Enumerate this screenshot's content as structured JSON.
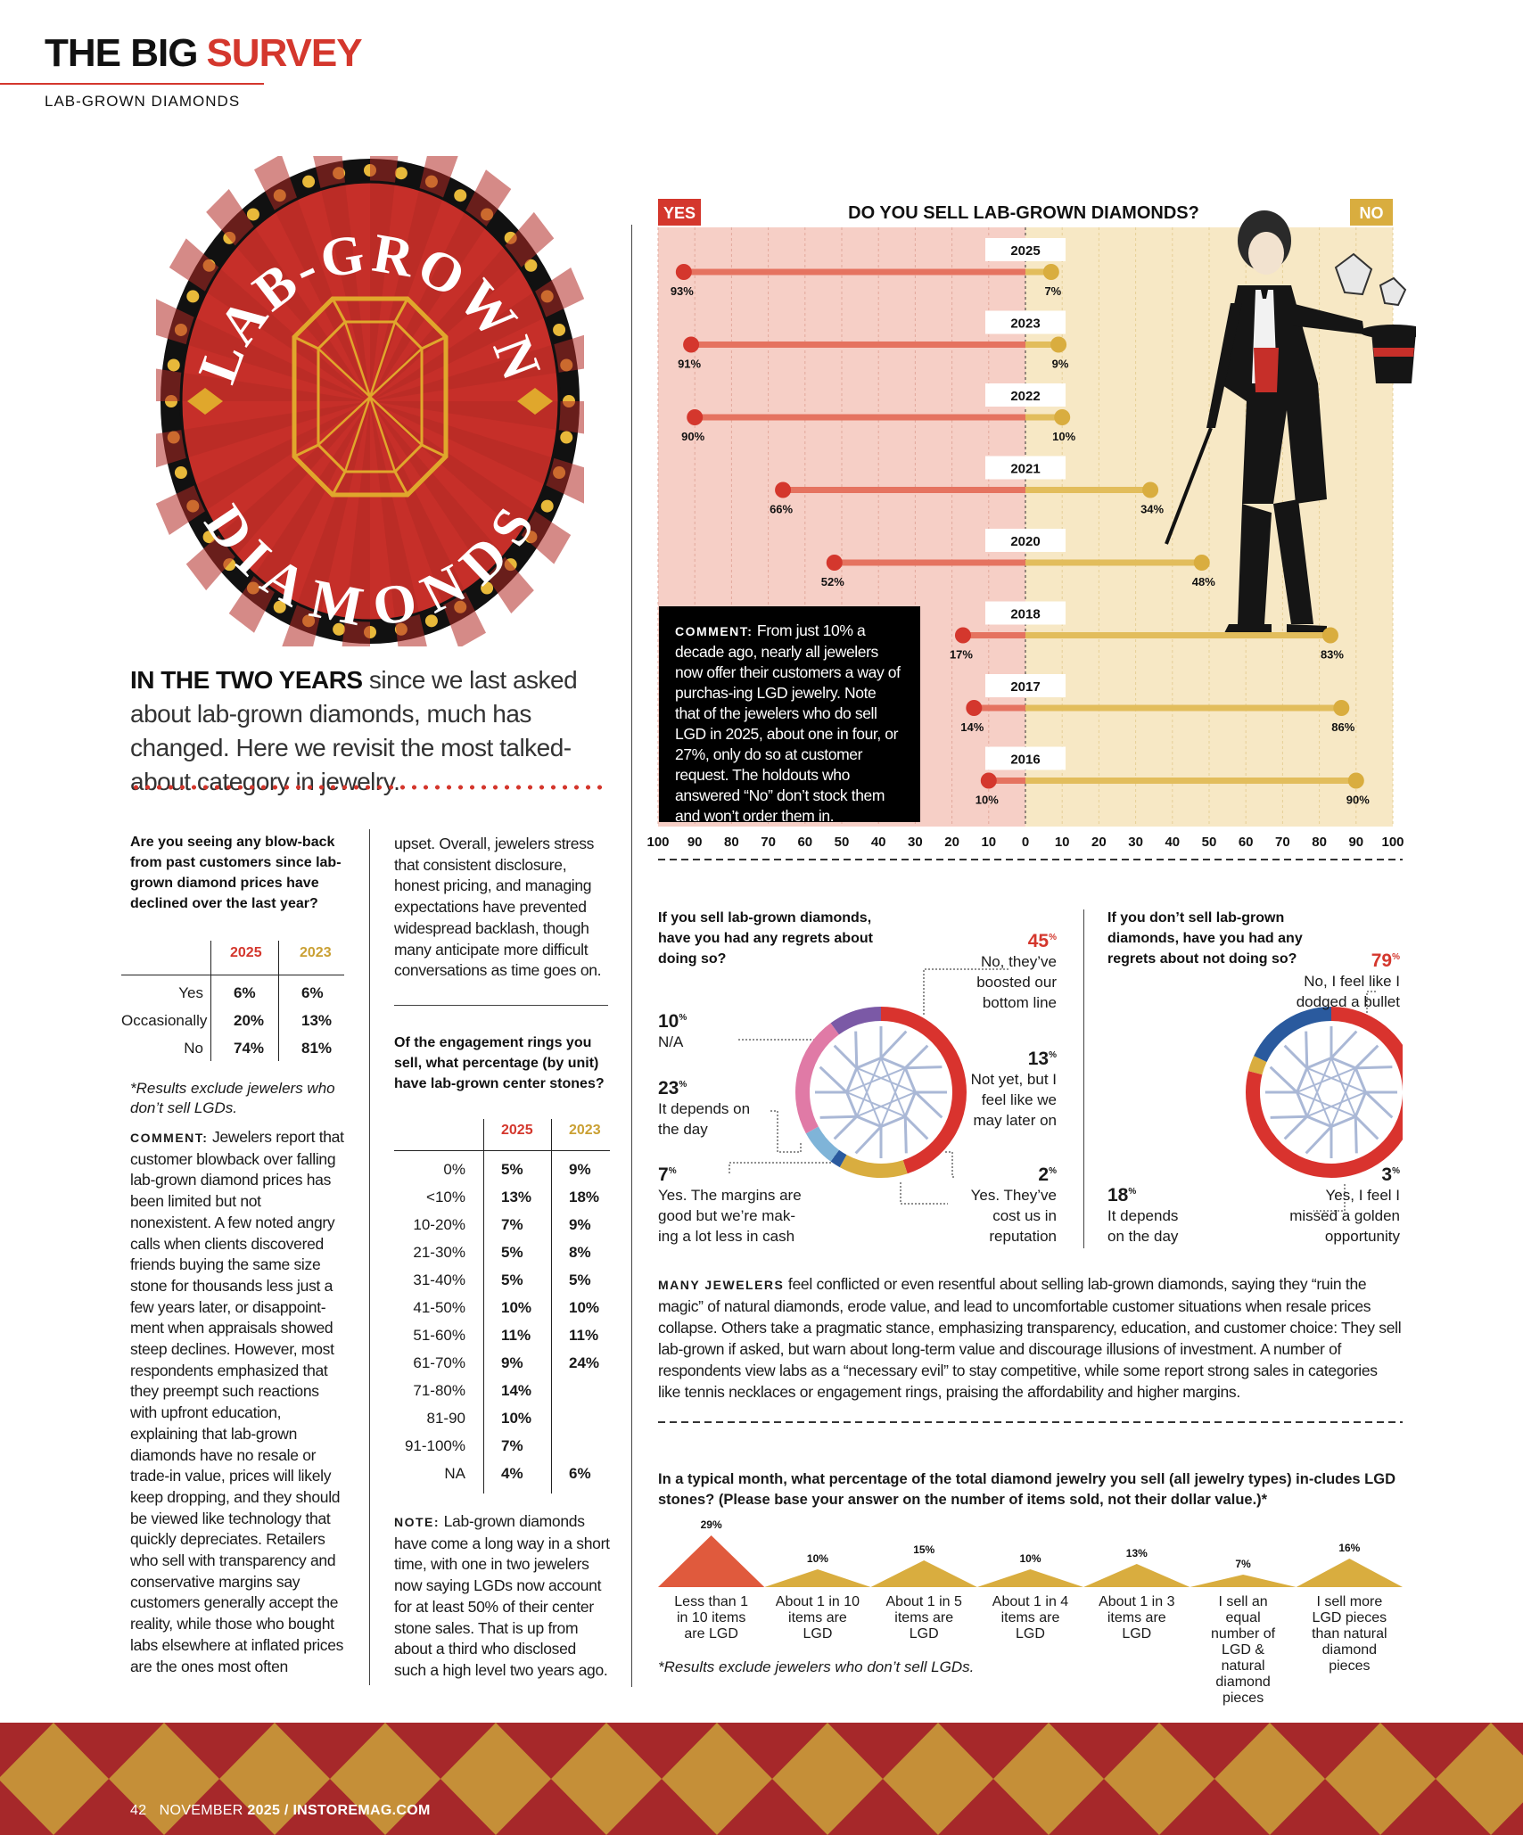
{
  "header": {
    "title_a": "THE BIG",
    "title_b": "SURVEY",
    "section": "LAB-GROWN DIAMONDS"
  },
  "badge": {
    "top_text": "LAB-GROWN",
    "bottom_text": "DIAMONDS"
  },
  "intro": {
    "lead": "IN THE TWO YEARS",
    "rest": " since we last asked about lab-grown diamonds, much has changed. Here we revisit the most talked-about category in jewelry."
  },
  "blowback": {
    "question": "Are you seeing any blow-back from past customers since lab-grown diamond prices have declined over the last year?",
    "col_a": "2025",
    "col_b": "2023",
    "rows": [
      {
        "label": "Yes",
        "a": "6%",
        "b": "6%"
      },
      {
        "label": "Occasionally",
        "a": "20%",
        "b": "13%"
      },
      {
        "label": "No",
        "a": "74%",
        "b": "81%"
      }
    ],
    "note": "*Results exclude jewelers who don’t sell LGDs.",
    "comment_lead": "COMMENT:",
    "comment_body": " Jewelers report that customer blowback over falling lab-grown diamond prices has been limited but not nonexistent. A few noted angry calls when clients discovered friends buying the same size stone for thousands less just a few years later, or disappoint-ment when appraisals showed steep declines. However, most respondents emphasized that they preempt such reactions with upfront education, explaining that lab-grown diamonds have no resale or trade-in value, prices will likely keep dropping, and they should be viewed like technology that quickly depreciates. Retailers who sell with transparency and conservative margins say customers generally accept the reality, while those who bought labs elsewhere at inflated prices are the ones most often",
    "continued": "upset. Overall, jewelers stress that consistent disclosure, honest pricing, and managing expectations have prevented widespread backlash, though many anticipate more difficult conversations as time goes on."
  },
  "engagement": {
    "question": "Of the engagement rings you sell, what percentage (by unit) have lab-grown center stones?",
    "col_a": "2025",
    "col_b": "2023",
    "rows": [
      {
        "label": "0%",
        "a": "5%",
        "b": "9%"
      },
      {
        "label": "<10%",
        "a": "13%",
        "b": "18%"
      },
      {
        "label": "10-20%",
        "a": "7%",
        "b": "9%"
      },
      {
        "label": "21-30%",
        "a": "5%",
        "b": "8%"
      },
      {
        "label": "31-40%",
        "a": "5%",
        "b": "5%"
      },
      {
        "label": "41-50%",
        "a": "10%",
        "b": "10%"
      },
      {
        "label": "51-60%",
        "a": "11%",
        "b": "11%"
      },
      {
        "label": "61-70%",
        "a": "9%",
        "b": "24%"
      },
      {
        "label": "71-80%",
        "a": "14%",
        "b": ""
      },
      {
        "label": "81-90",
        "a": "10%",
        "b": ""
      },
      {
        "label": "91-100%",
        "a": "7%",
        "b": ""
      },
      {
        "label": "NA",
        "a": "4%",
        "b": "6%"
      }
    ],
    "note_lead": "NOTE:",
    "note_body": " Lab-grown diamonds have come a long way in a short time, with one in two jewelers now saying LGDs now account for at least 50% of their center stone sales. That is up from about a third who disclosed such a high level two years ago."
  },
  "chart_data": [
    {
      "type": "bar",
      "title": "DO YOU SELL LAB-GROWN DIAMONDS?",
      "left_label": "YES",
      "right_label": "NO",
      "categories": [
        "2025",
        "2023",
        "2022",
        "2021",
        "2020",
        "2018",
        "2017",
        "2016"
      ],
      "series": [
        {
          "name": "YES",
          "values": [
            93,
            91,
            90,
            66,
            52,
            17,
            14,
            10
          ],
          "color": "#d4372d"
        },
        {
          "name": "NO",
          "values": [
            7,
            9,
            10,
            34,
            48,
            83,
            86,
            90
          ],
          "color": "#d9ad3f"
        }
      ],
      "x_ticks": [
        "100",
        "90",
        "80",
        "70",
        "60",
        "50",
        "40",
        "30",
        "20",
        "10",
        "0",
        "10",
        "20",
        "30",
        "40",
        "50",
        "60",
        "70",
        "80",
        "90",
        "100"
      ],
      "xlim": [
        -100,
        100
      ],
      "grid": true
    },
    {
      "type": "pie",
      "title": "If you sell lab-grown diamonds, have you had any regrets about doing so?",
      "slices": [
        {
          "label": "No, they’ve boosted our bottom line",
          "value": 45,
          "color": "#d9332e"
        },
        {
          "label": "Not yet, but I feel like we may later on",
          "value": 13,
          "color": "#d9ad3f"
        },
        {
          "label": "Yes. They’ve cost us in reputation",
          "value": 2,
          "color": "#2a5a9e"
        },
        {
          "label": "Yes. The margins are good but we’re mak-ing a lot less in cash",
          "value": 7,
          "color": "#7fb4d8"
        },
        {
          "label": "It depends on the day",
          "value": 23,
          "color": "#e07aa6"
        },
        {
          "label": "N/A",
          "value": 10,
          "color": "#7b59a6"
        }
      ]
    },
    {
      "type": "pie",
      "title": "If you don’t sell lab-grown diamonds, have you had any regrets about not doing so?",
      "slices": [
        {
          "label": "No, I feel like I dodged a bullet",
          "value": 79,
          "color": "#d9332e"
        },
        {
          "label": "Yes, I feel I missed a golden opportunity",
          "value": 3,
          "color": "#d9ad3f"
        },
        {
          "label": "It depends on the day",
          "value": 18,
          "color": "#2a5a9e"
        }
      ]
    },
    {
      "type": "area",
      "title": "In a typical month, what percentage of the total diamond jewelry you sell (all jewelry types) in-cludes LGD stones? (Please base your answer on the number of items sold, not their dollar value.)*",
      "categories": [
        "Less than 1 in 10 items are LGD",
        "About 1 in 10 items are LGD",
        "About 1 in 5 items are LGD",
        "About 1 in 4 items are LGD",
        "About 1 in 3 items are LGD",
        "I sell an equal number of LGD & natural diamond pieces",
        "I sell more LGD pieces than natural diamond pieces"
      ],
      "values": [
        29,
        10,
        15,
        10,
        13,
        7,
        16
      ],
      "colors": [
        "#e05a3d",
        "#d9ad3f",
        "#d9ad3f",
        "#d9ad3f",
        "#d9ad3f",
        "#d9ad3f",
        "#d9ad3f"
      ]
    }
  ],
  "top_comment": {
    "lead": "COMMENT:",
    "body": " From just 10% a decade ago, nearly all jewelers now offer their customers a way of purchas-ing LGD jewelry. Note that of the jewelers who do sell LGD in 2025, about one in four, or 27%, only do so at customer request. The holdouts who answered “No” don’t stock them and won’t order them in."
  },
  "donut1_labels": [
    {
      "pct": "45",
      "text": "No, they’ve boosted our bottom line"
    },
    {
      "pct": "13",
      "text": "Not yet, but I feel like we may later on"
    },
    {
      "pct": "2",
      "text": "Yes. They’ve cost us in reputation"
    },
    {
      "pct": "7",
      "text": "Yes. The margins are good but we’re mak-ing a lot less in cash"
    },
    {
      "pct": "23",
      "text": "It depends on the day"
    },
    {
      "pct": "10",
      "text": "N/A"
    }
  ],
  "donut2_labels": [
    {
      "pct": "79",
      "text": "No, I feel like I dodged a bullet"
    },
    {
      "pct": "3",
      "text": "Yes, I feel I missed a golden opportunity"
    },
    {
      "pct": "18",
      "text": "It depends on the day"
    }
  ],
  "many": {
    "lead": "MANY JEWELERS",
    "body": " feel conflicted or even resentful about selling lab-grown diamonds, saying they “ruin the magic” of natural diamonds, erode value, and lead to uncomfortable customer situations when resale prices collapse. Others take a pragmatic stance, emphasizing transparency, education, and customer choice: They sell lab-grown if asked, but warn about long-term value and discourage illusions of investment. A number of respondents view labs as a “necessary evil” to stay competitive, while some report strong sales in categories like tennis necklaces or engagement rings, praising the affordability and higher margins."
  },
  "bottom_note": "*Results exclude jewelers who don’t sell LGDs.",
  "footer": {
    "page": "42",
    "month": "NOVEMBER",
    "year": "2025",
    "sep": " / ",
    "site": "INSTOREMAG.COM"
  },
  "colors": {
    "accent_red": "#d4372d",
    "accent_gold": "#d9ad3f",
    "yes_bg": "#f6cfc6",
    "no_bg": "#f7e8c5",
    "footer_red": "#a6282a"
  }
}
